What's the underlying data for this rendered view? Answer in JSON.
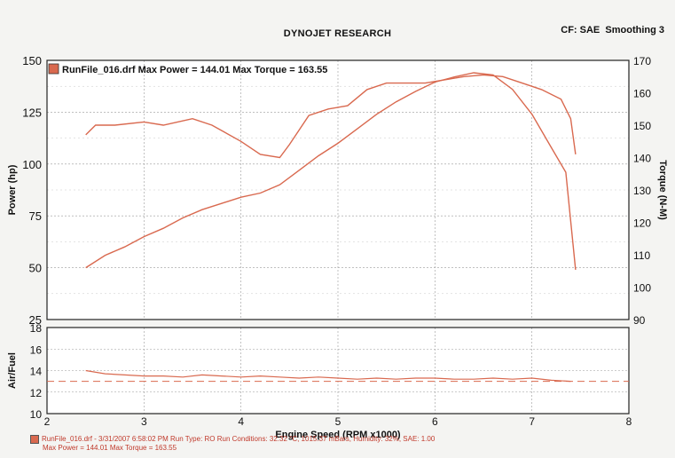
{
  "header": {
    "title": "DYNOJET RESEARCH",
    "cf_label": "CF: SAE",
    "smoothing_label": "Smoothing 3"
  },
  "legend": {
    "run_file": "RunFile_016.drf",
    "max_power_text": "Max Power = 144.01",
    "max_torque_text": "Max Torque = 163.55"
  },
  "footer": {
    "line1": "RunFile_016.drf - 3/31/2007 6:58:02 PM  Run Type: RO  Run Conditions: 32.32 °C, 1015.37 mBars,  Humidity: 32%, SAE: 1.00",
    "line2": "Max Power = 144.01  Max Torque = 163.55"
  },
  "colors": {
    "series": "#d9694f",
    "grid": "#9a9a9a",
    "frame": "#222222",
    "plot_bg": "#ffffff"
  },
  "chart_data": [
    {
      "type": "line",
      "title": "DYNOJET RESEARCH",
      "xlabel": "Engine Speed (RPM x1000)",
      "ylabel": "Power (hp)",
      "y2label": "Torque (N-M)",
      "xlim": [
        2,
        8
      ],
      "ylim": [
        25,
        150
      ],
      "y2lim": [
        90,
        170
      ],
      "x_ticks": [
        2,
        3,
        4,
        5,
        6,
        7,
        8
      ],
      "y_ticks": [
        25,
        50,
        75,
        100,
        125,
        150
      ],
      "y2_ticks": [
        90,
        100,
        110,
        120,
        130,
        140,
        150,
        160,
        170
      ],
      "grid": true,
      "legend_position": "top-left",
      "series": [
        {
          "axis": "left",
          "x": [
            2.4,
            2.6,
            2.8,
            3.0,
            3.2,
            3.4,
            3.6,
            3.8,
            4.0,
            4.2,
            4.4,
            4.6,
            4.8,
            5.0,
            5.2,
            5.4,
            5.6,
            5.8,
            6.0,
            6.2,
            6.4,
            6.6,
            6.8,
            7.0,
            7.2,
            7.35,
            7.45
          ],
          "y": [
            50,
            56,
            60,
            65,
            69,
            74,
            78,
            81,
            84,
            86,
            90,
            97,
            104,
            110,
            117,
            124,
            130,
            135,
            139.5,
            142,
            144,
            143,
            136,
            124,
            108,
            96,
            49
          ]
        },
        {
          "axis": "right",
          "x": [
            2.4,
            2.5,
            2.7,
            3.0,
            3.2,
            3.5,
            3.7,
            4.0,
            4.2,
            4.4,
            4.5,
            4.7,
            4.9,
            5.1,
            5.3,
            5.5,
            5.7,
            5.9,
            6.1,
            6.3,
            6.5,
            6.7,
            6.9,
            7.1,
            7.3,
            7.4,
            7.45
          ],
          "y": [
            147,
            150,
            150,
            151,
            150,
            152,
            150,
            145,
            141,
            140,
            144,
            153,
            155,
            156,
            161,
            163,
            163,
            163,
            164,
            165,
            165.5,
            165,
            163,
            161,
            158,
            152,
            141
          ]
        }
      ]
    },
    {
      "type": "line",
      "xlabel": "Engine Speed (RPM x1000)",
      "ylabel": "Air/Fuel",
      "xlim": [
        2,
        8
      ],
      "ylim": [
        10,
        18
      ],
      "x_ticks": [
        2,
        3,
        4,
        5,
        6,
        7,
        8
      ],
      "y_ticks": [
        10,
        12,
        14,
        16,
        18
      ],
      "grid": true,
      "reference_line": 13.0,
      "series": [
        {
          "x": [
            2.4,
            2.6,
            2.8,
            3.0,
            3.2,
            3.4,
            3.6,
            3.8,
            4.0,
            4.2,
            4.4,
            4.6,
            4.8,
            5.0,
            5.2,
            5.4,
            5.6,
            5.8,
            6.0,
            6.2,
            6.4,
            6.6,
            6.8,
            7.0,
            7.2,
            7.4
          ],
          "y": [
            14.0,
            13.7,
            13.6,
            13.5,
            13.5,
            13.4,
            13.6,
            13.5,
            13.4,
            13.5,
            13.4,
            13.3,
            13.4,
            13.3,
            13.2,
            13.3,
            13.2,
            13.3,
            13.3,
            13.2,
            13.2,
            13.3,
            13.2,
            13.3,
            13.1,
            13.0
          ]
        }
      ]
    }
  ]
}
